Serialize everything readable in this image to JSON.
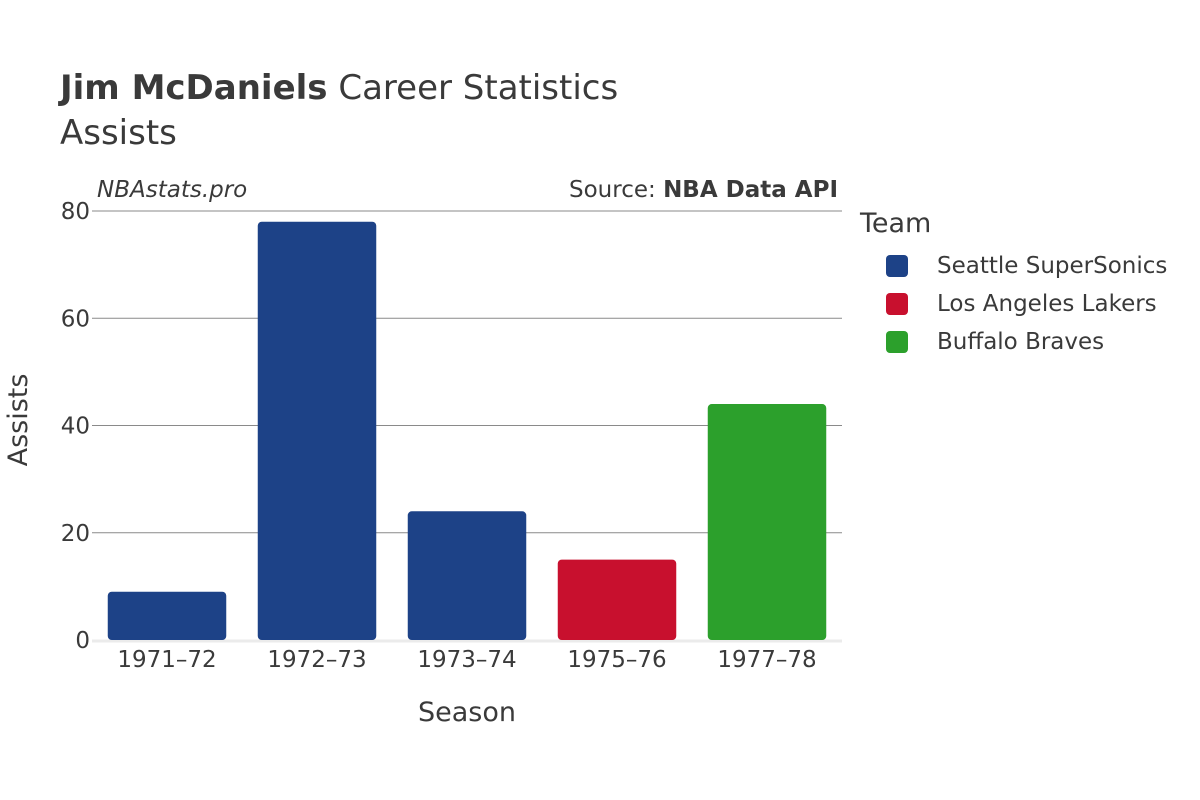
{
  "header": {
    "title_bold": "Jim McDaniels",
    "title_rest": " Career Statistics",
    "subtitle": "Assists"
  },
  "watermark": "NBAstats.pro",
  "source": {
    "prefix": "Source: ",
    "name": "NBA Data API"
  },
  "legend": {
    "title": "Team",
    "items": [
      {
        "label": "Seattle SuperSonics",
        "color": "#1d4287"
      },
      {
        "label": "Los Angeles Lakers",
        "color": "#c8102e"
      },
      {
        "label": "Buffalo Braves",
        "color": "#2ca02c"
      }
    ]
  },
  "chart_data": {
    "type": "bar",
    "categories": [
      "1971–72",
      "1972–73",
      "1973–74",
      "1975–76",
      "1977–78"
    ],
    "values": [
      9,
      78,
      24,
      15,
      44
    ],
    "teams": [
      "Seattle SuperSonics",
      "Seattle SuperSonics",
      "Seattle SuperSonics",
      "Los Angeles Lakers",
      "Buffalo Braves"
    ],
    "xlabel": "Season",
    "ylabel": "Assists",
    "ylim": [
      0,
      80
    ],
    "yticks": [
      0,
      20,
      40,
      60,
      80
    ],
    "grid": true,
    "legend_position": "right"
  }
}
